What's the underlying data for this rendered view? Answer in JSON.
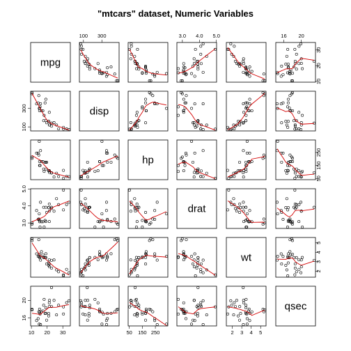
{
  "chart_data": {
    "type": "scatter",
    "title": "\"mtcars\" dataset, Numeric Variables",
    "variables": [
      "mpg",
      "disp",
      "hp",
      "drat",
      "wt",
      "qsec"
    ],
    "point_color": "#000000",
    "smooth_color": "#d40000",
    "grid": false,
    "ranges": {
      "mpg": [
        10.4,
        33.9
      ],
      "disp": [
        71.1,
        472.0
      ],
      "hp": [
        52,
        335
      ],
      "drat": [
        2.76,
        4.93
      ],
      "wt": [
        1.513,
        5.424
      ],
      "qsec": [
        14.5,
        22.9
      ]
    },
    "ticks": {
      "mpg": [
        10,
        20,
        30
      ],
      "disp": [
        100,
        300
      ],
      "hp": [
        50,
        150,
        250
      ],
      "drat": [
        3.0,
        4.0,
        5.0
      ],
      "wt": [
        2,
        3,
        4,
        5
      ],
      "qsec": [
        16,
        20
      ]
    },
    "tick_labels": {
      "top": [
        {
          "var": "disp",
          "labels": [
            "100",
            "300"
          ]
        },
        {
          "var": "drat",
          "labels": [
            "3.0",
            "4.0",
            "5.0"
          ]
        },
        {
          "var": "qsec",
          "labels": [
            "16",
            "20"
          ]
        }
      ],
      "bottom": [
        {
          "var": "mpg",
          "labels": [
            "10",
            "20",
            "30"
          ]
        },
        {
          "var": "hp",
          "labels": [
            "50",
            "150",
            "250"
          ]
        },
        {
          "var": "wt",
          "labels": [
            "2",
            "3",
            "4",
            "5"
          ]
        }
      ],
      "left": [
        {
          "var": "disp",
          "labels": [
            "100",
            "300"
          ]
        },
        {
          "var": "drat",
          "labels": [
            "3.0",
            "4.0",
            "5.0"
          ]
        },
        {
          "var": "qsec",
          "labels": [
            "16",
            "20"
          ]
        }
      ],
      "right": [
        {
          "var": "mpg",
          "labels": [
            "10",
            "20",
            "30"
          ]
        },
        {
          "var": "hp",
          "labels": [
            "50",
            "150",
            "250"
          ]
        },
        {
          "var": "wt",
          "labels": [
            "2",
            "3",
            "4",
            "5"
          ]
        }
      ]
    },
    "observations": {
      "mpg": [
        21.0,
        21.0,
        22.8,
        21.4,
        18.7,
        18.1,
        14.3,
        24.4,
        22.8,
        19.2,
        17.8,
        16.4,
        17.3,
        15.2,
        10.4,
        10.4,
        14.7,
        32.4,
        30.4,
        33.9,
        21.5,
        15.5,
        15.2,
        13.3,
        19.2,
        27.3,
        26.0,
        30.4,
        15.8,
        19.7,
        15.0,
        21.4
      ],
      "disp": [
        160,
        160,
        108,
        258,
        360,
        225,
        360,
        146.7,
        140.8,
        167.6,
        167.6,
        275.8,
        275.8,
        275.8,
        472,
        460,
        440,
        78.7,
        75.7,
        71.1,
        120.1,
        318,
        304,
        350,
        400,
        79,
        120.3,
        95.1,
        351,
        145,
        301,
        121
      ],
      "hp": [
        110,
        110,
        93,
        110,
        175,
        105,
        245,
        62,
        95,
        123,
        123,
        180,
        180,
        180,
        205,
        215,
        230,
        66,
        52,
        65,
        97,
        150,
        150,
        245,
        175,
        66,
        91,
        113,
        264,
        175,
        335,
        109
      ],
      "drat": [
        3.9,
        3.9,
        3.85,
        3.08,
        3.15,
        2.76,
        3.21,
        3.69,
        3.92,
        3.92,
        3.92,
        3.07,
        3.07,
        3.07,
        2.93,
        3.0,
        3.23,
        4.08,
        4.93,
        4.22,
        3.7,
        2.76,
        3.15,
        3.73,
        3.08,
        4.08,
        4.43,
        3.77,
        4.22,
        3.62,
        3.54,
        4.11
      ],
      "wt": [
        2.62,
        2.875,
        2.32,
        3.215,
        3.44,
        3.46,
        3.57,
        3.19,
        3.15,
        3.44,
        3.44,
        4.07,
        3.73,
        3.78,
        5.25,
        5.424,
        5.345,
        2.2,
        1.615,
        1.835,
        2.465,
        3.52,
        3.435,
        3.84,
        3.845,
        1.935,
        2.14,
        1.513,
        3.17,
        2.77,
        3.57,
        2.78
      ],
      "qsec": [
        16.46,
        17.02,
        18.61,
        19.44,
        17.02,
        20.22,
        15.84,
        20.0,
        22.9,
        18.3,
        18.9,
        17.4,
        17.6,
        18.0,
        17.98,
        17.82,
        17.42,
        19.47,
        18.52,
        19.9,
        20.01,
        16.87,
        17.3,
        15.41,
        17.05,
        18.9,
        16.7,
        16.9,
        14.5,
        15.5,
        14.6,
        18.6
      ]
    }
  }
}
